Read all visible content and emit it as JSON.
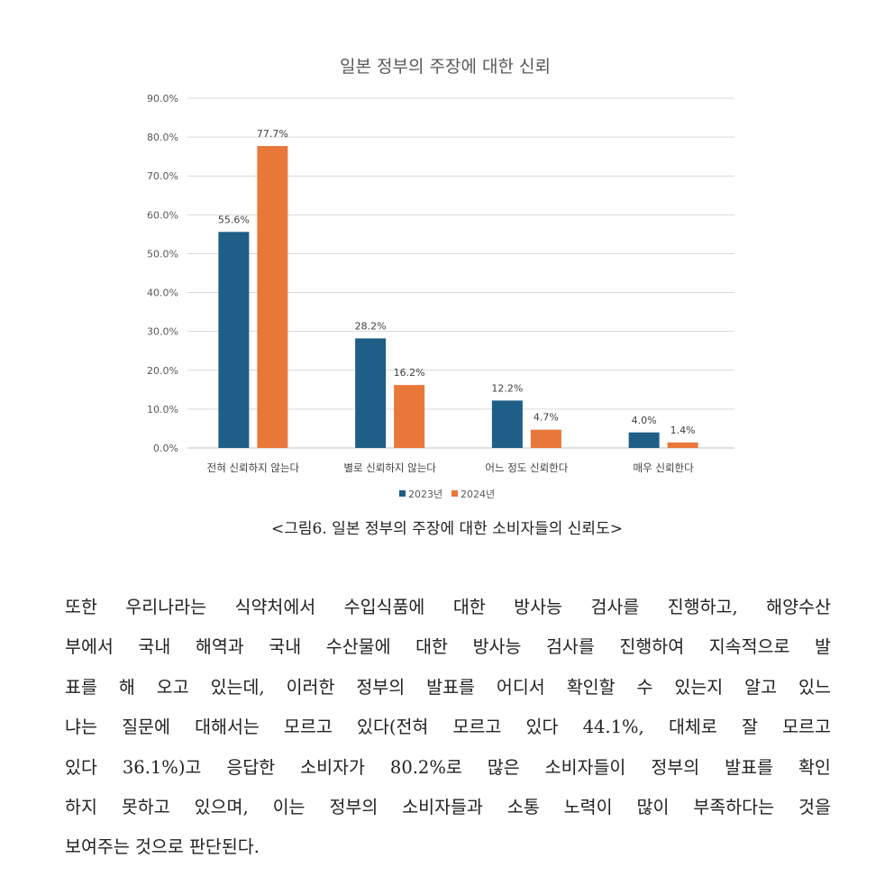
{
  "chart_data": {
    "type": "bar",
    "title": "일본 정부의 주장에 대한 신뢰",
    "categories": [
      "전혀 신뢰하지 않는다",
      "별로 신뢰하지 않는다",
      "어느 정도 신뢰한다",
      "매우 신뢰한다"
    ],
    "series": [
      {
        "name": "2023년",
        "values": [
          55.6,
          28.2,
          12.2,
          4.0
        ],
        "labels": [
          "55.6%",
          "28.2%",
          "12.2%",
          "4.0%"
        ],
        "color": "#1f5f87"
      },
      {
        "name": "2024년",
        "values": [
          77.7,
          16.2,
          4.7,
          1.4
        ],
        "labels": [
          "77.7%",
          "16.2%",
          "4.7%",
          "1.4%"
        ],
        "color": "#e8773a"
      }
    ],
    "yticks": [
      "0.0%",
      "10.0%",
      "20.0%",
      "30.0%",
      "40.0%",
      "50.0%",
      "60.0%",
      "70.0%",
      "80.0%",
      "90.0%"
    ],
    "ylim": [
      0,
      90
    ],
    "grid": true,
    "legend_position": "bottom",
    "xlabel": "",
    "ylabel": ""
  },
  "caption": "<그림6. 일본 정부의 주장에 대한 소비자들의 신뢰도>",
  "paragraph_lines": [
    "또한 우리나라는 식약처에서 수입식품에 대한 방사능 검사를 진행하고, 해양수산",
    "부에서 국내 해역과 국내 수산물에 대한 방사능 검사를 진행하여 지속적으로 발",
    "표를 해 오고 있는데, 이러한 정부의 발표를 어디서 확인할 수 있는지 알고 있느",
    "냐는 질문에 대해서는 모르고 있다(전혀 모르고 있다 44.1%, 대체로 잘 모르고",
    "있다 36.1%)고 응답한 소비자가 80.2%로 많은 소비자들이 정부의 발표를 확인",
    "하지 못하고 있으며, 이는 정부의 소비자들과 소통 노력이 많이 부족하다는 것을",
    "보여주는 것으로 판단된다."
  ]
}
